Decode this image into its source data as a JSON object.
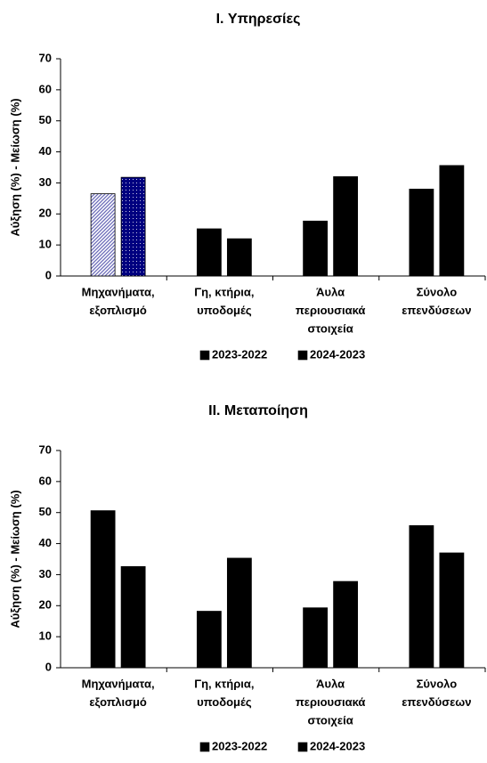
{
  "chart_data": [
    {
      "type": "bar",
      "title": "I. Υπηρεσίες",
      "y_label": "Αύξηση (%) - Μείωση (%)",
      "categories": [
        [
          "Μηχανήματα,",
          "εξοπλισμό"
        ],
        [
          "Γη, κτήρια,",
          "υποδομές"
        ],
        [
          "Άυλα",
          "περιουσιακά",
          "στοιχεία"
        ],
        [
          "Σύνολο",
          "επενδύσεων"
        ]
      ],
      "series": [
        {
          "name": "2023-2022",
          "color": "#6a6ab8",
          "values": [
            26.5,
            15.2,
            17.7,
            28
          ]
        },
        {
          "name": "2024-2023",
          "color": "#000080",
          "values": [
            31.8,
            12,
            32,
            35.6
          ]
        }
      ],
      "ylim": [
        0,
        70
      ],
      "yticks": [
        0,
        10,
        20,
        30,
        40,
        50,
        60,
        70
      ],
      "grid": false
    },
    {
      "type": "bar",
      "title": "II. Μεταποίηση",
      "y_label": "Αύξηση (%) - Μείωση (%)",
      "categories": [
        [
          "Μηχανήματα,",
          "εξοπλισμό"
        ],
        [
          "Γη, κτήρια,",
          "υποδομές"
        ],
        [
          "Άυλα",
          "περιουσιακά",
          "στοιχεία"
        ],
        [
          "Σύνολο",
          "επενδύσεων"
        ]
      ],
      "series": [
        {
          "name": "2023-2022",
          "color": "#6a6ab8",
          "values": [
            50.6,
            18.2,
            19.3,
            45.8
          ]
        },
        {
          "name": "2024-2023",
          "color": "#000080",
          "values": [
            32.6,
            35.3,
            27.8,
            37
          ]
        }
      ],
      "ylim": [
        0,
        70
      ],
      "yticks": [
        0,
        10,
        20,
        30,
        40,
        50,
        60,
        70
      ],
      "grid": false
    }
  ]
}
